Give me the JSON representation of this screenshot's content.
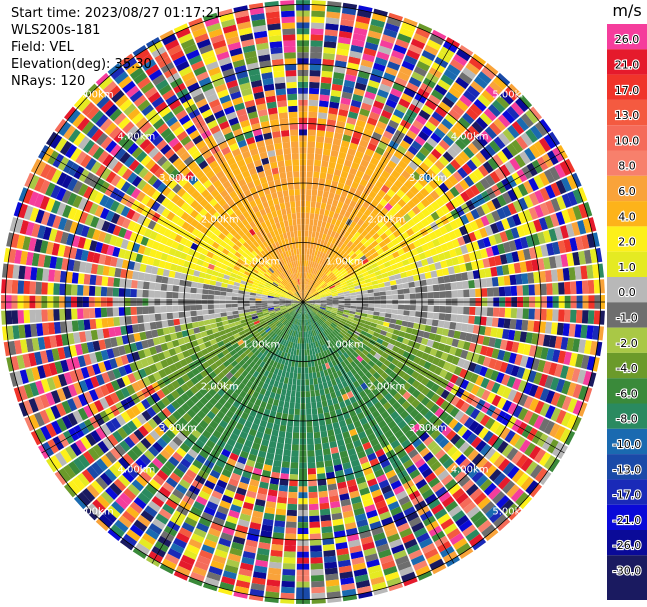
{
  "header": {
    "start_time": "Start time: 2023/08/27 01:17:21",
    "instrument": "WLS200s-181",
    "field": "Field: VEL",
    "elevation": "Elevation(deg): 35.30",
    "nrays": "NRays: 120"
  },
  "chart_data": {
    "type": "ppi",
    "nrays": 120,
    "elevation_deg": 35.3,
    "range_rings_km": [
      1.0,
      2.0,
      3.0,
      4.0,
      5.0
    ],
    "ring_labels": [
      "1.00km",
      "2.00km",
      "3.00km",
      "4.00km",
      "5.00km"
    ],
    "spoke_angles_deg": [
      0,
      30,
      60,
      90,
      120,
      150,
      180,
      210,
      240,
      270,
      300,
      330
    ],
    "max_range_km": 5.0,
    "velocity_pattern": {
      "coherent_range_km": 2.8,
      "positive_sector": "north (0.0 to 8.0 m/s, peak ~6.0 toward north)",
      "negative_sector": "south (-2.0 to -8.0 m/s)",
      "far_range": "noise (all colors)"
    },
    "colorbar": {
      "units": "m/s",
      "ticks": [
        "26.0",
        "21.0",
        "17.0",
        "13.0",
        "10.0",
        "8.0",
        "6.0",
        "4.0",
        "2.0",
        "1.0",
        "0.0",
        "-1.0",
        "-2.0",
        "-4.0",
        "-6.0",
        "-8.0",
        "-10.0",
        "-13.0",
        "-17.0",
        "-21.0",
        "-26.0",
        "-30.0"
      ],
      "colors": [
        "#f53d9c",
        "#e51a2c",
        "#f0342a",
        "#f45a40",
        "#f56b5a",
        "#f7806c",
        "#f9a33a",
        "#fdb31a",
        "#fdf01a",
        "#e5ea22",
        "#b8b8b8",
        "#6e6e6e",
        "#a9c846",
        "#6b9a2a",
        "#3a8a3a",
        "#2a8a60",
        "#1a6ab0",
        "#1a4aa8",
        "#1a2ab8",
        "#0a0ad8",
        "#0a0a98",
        "#1a1a60"
      ]
    }
  }
}
